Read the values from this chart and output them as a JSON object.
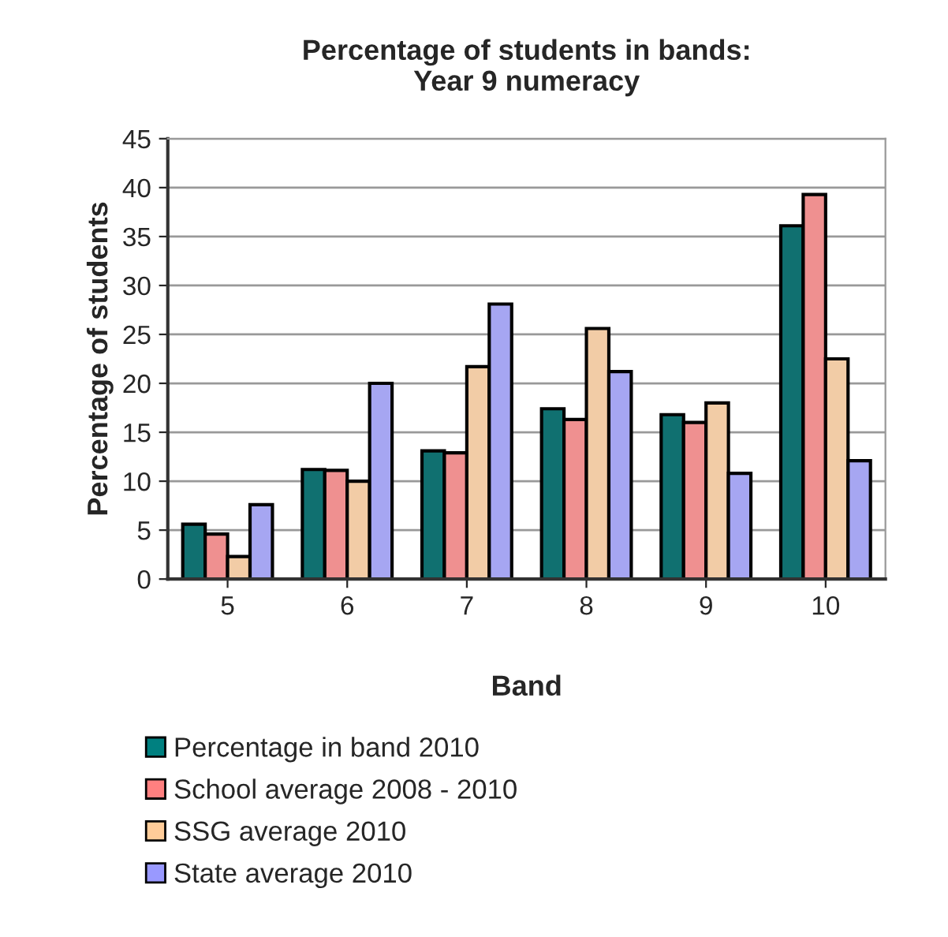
{
  "chart_data": {
    "type": "bar",
    "title": "Percentage of students in bands:\nYear 9 numeracy",
    "xlabel": "Band",
    "ylabel": "Percentage of students",
    "categories": [
      "5",
      "6",
      "7",
      "8",
      "9",
      "10"
    ],
    "series": [
      {
        "name": "Percentage in band 2010",
        "color": "#008080",
        "values": [
          5.6,
          11.2,
          13.1,
          17.4,
          16.8,
          36.1
        ]
      },
      {
        "name": "School average 2008 - 2010",
        "color": "#ff8080",
        "values": [
          4.6,
          11.1,
          12.9,
          16.3,
          16.0,
          39.3
        ]
      },
      {
        "name": "SSG average 2010",
        "color": "#ffcc99",
        "values": [
          2.3,
          10.0,
          21.7,
          25.6,
          18.0,
          22.5
        ]
      },
      {
        "name": "State average 2010",
        "color": "#9999ff",
        "values": [
          7.6,
          20.0,
          28.1,
          21.2,
          10.8,
          12.1
        ]
      }
    ],
    "ylim": [
      0,
      45
    ],
    "yticks": [
      0,
      5,
      10,
      15,
      20,
      25,
      30,
      35,
      40,
      45
    ],
    "grid": "y",
    "legend": "bottom"
  }
}
